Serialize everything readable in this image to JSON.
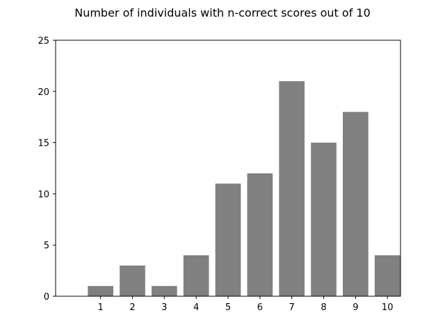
{
  "chart_data": {
    "type": "bar",
    "title": "Number of individuals with n-correct scores out of 10",
    "categories": [
      "1",
      "2",
      "3",
      "4",
      "5",
      "6",
      "7",
      "8",
      "9",
      "10"
    ],
    "values": [
      1,
      3,
      1,
      4,
      11,
      12,
      21,
      15,
      18,
      4
    ],
    "ylim": [
      0,
      25
    ],
    "yticks": [
      "0",
      "5",
      "10",
      "15",
      "20",
      "25"
    ],
    "bar_color": "#808080",
    "grid": false,
    "xlabel": "",
    "ylabel": ""
  }
}
